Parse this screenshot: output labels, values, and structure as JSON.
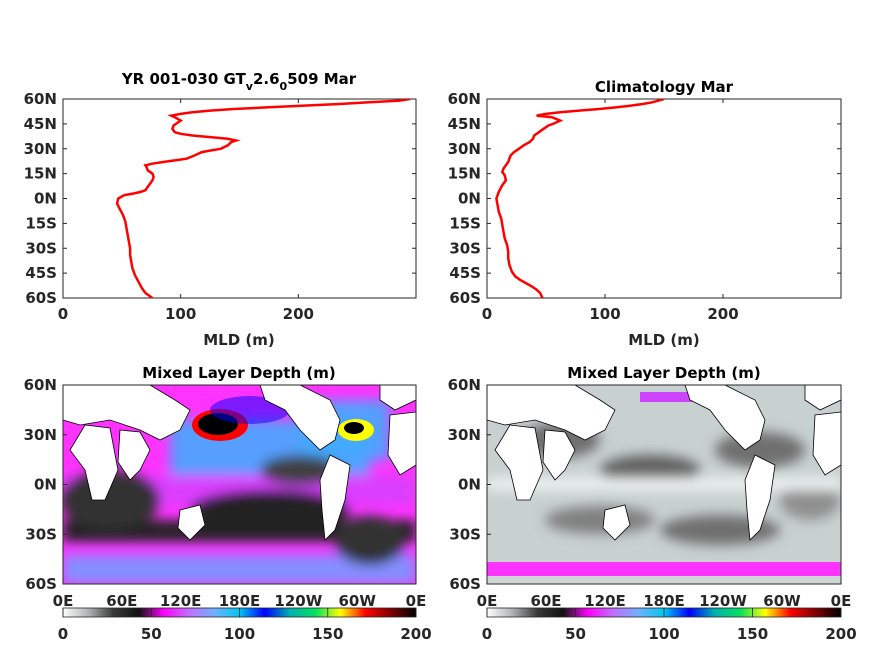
{
  "figure": {
    "colorbar_stops": [
      "#ffffff",
      "#aeb4b4",
      "#3a3a3a",
      "#111111",
      "#ff00ff",
      "#c070ff",
      "#70b0ff",
      "#00c8f0",
      "#0000ff",
      "#00b0b0",
      "#00e060",
      "#ffff00",
      "#ff0000",
      "#800000",
      "#000000"
    ]
  },
  "chart_data": [
    {
      "type": "line",
      "title": "YR 001-030 GT",
      "title_sub1": "v",
      "title_mid": "2.6",
      "title_sub2": "0",
      "title_end": "509 Mar",
      "xlabel": "MLD (m)",
      "xlim": [
        0,
        300
      ],
      "xticks": [
        "0",
        "100",
        "200"
      ],
      "xtick_values": [
        0,
        100,
        200
      ],
      "ylim": [
        -60,
        60
      ],
      "yticks": [
        "60N",
        "45N",
        "30N",
        "15N",
        "0N",
        "15S",
        "30S",
        "45S",
        "60S"
      ],
      "ytick_values": [
        60,
        45,
        30,
        15,
        0,
        -15,
        -30,
        -45,
        -60
      ],
      "series": [
        {
          "color": "#ff0000",
          "points": [
            [
              76,
              -60
            ],
            [
              70,
              -57
            ],
            [
              67,
              -54
            ],
            [
              64,
              -50
            ],
            [
              61,
              -46
            ],
            [
              59,
              -42
            ],
            [
              58,
              -38
            ],
            [
              57,
              -34
            ],
            [
              57,
              -30
            ],
            [
              56,
              -26
            ],
            [
              55,
              -22
            ],
            [
              54,
              -18
            ],
            [
              53,
              -14
            ],
            [
              51,
              -10
            ],
            [
              48,
              -6
            ],
            [
              46,
              -3
            ],
            [
              47,
              0
            ],
            [
              52,
              2
            ],
            [
              60,
              3
            ],
            [
              66,
              4
            ],
            [
              70,
              5
            ],
            [
              72,
              7
            ],
            [
              74,
              9
            ],
            [
              76,
              11
            ],
            [
              77,
              13
            ],
            [
              76,
              15
            ],
            [
              72,
              17
            ],
            [
              71,
              19
            ],
            [
              70,
              20
            ],
            [
              76,
              21
            ],
            [
              85,
              22
            ],
            [
              95,
              23
            ],
            [
              105,
              24
            ],
            [
              112,
              26
            ],
            [
              118,
              28
            ],
            [
              126,
              29
            ],
            [
              134,
              30
            ],
            [
              140,
              32
            ],
            [
              143,
              34
            ],
            [
              147,
              35
            ],
            [
              140,
              36
            ],
            [
              125,
              37
            ],
            [
              110,
              38
            ],
            [
              100,
              39
            ],
            [
              95,
              40
            ],
            [
              93,
              42
            ],
            [
              94,
              44
            ],
            [
              96,
              45
            ],
            [
              100,
              47
            ],
            [
              95,
              49
            ],
            [
              92,
              50
            ],
            [
              100,
              51
            ],
            [
              110,
              52
            ],
            [
              125,
              53
            ],
            [
              145,
              54
            ],
            [
              175,
              55
            ],
            [
              205,
              56
            ],
            [
              235,
              57
            ],
            [
              260,
              58
            ],
            [
              285,
              59
            ],
            [
              295,
              60
            ]
          ]
        }
      ]
    },
    {
      "type": "line",
      "title": "Climatology Mar",
      "xlabel": "MLD (m)",
      "xlim": [
        0,
        300
      ],
      "xticks": [
        "0",
        "100",
        "200"
      ],
      "xtick_values": [
        0,
        100,
        200
      ],
      "ylim": [
        -60,
        60
      ],
      "yticks": [
        "60N",
        "45N",
        "30N",
        "15N",
        "0N",
        "15S",
        "30S",
        "45S",
        "60S"
      ],
      "ytick_values": [
        60,
        45,
        30,
        15,
        0,
        -15,
        -30,
        -45,
        -60
      ],
      "series": [
        {
          "color": "#ff0000",
          "points": [
            [
              47,
              -60
            ],
            [
              45,
              -57
            ],
            [
              42,
              -55
            ],
            [
              38,
              -53
            ],
            [
              33,
              -51
            ],
            [
              28,
              -49
            ],
            [
              24,
              -47
            ],
            [
              21,
              -44
            ],
            [
              19,
              -40
            ],
            [
              18,
              -36
            ],
            [
              18,
              -32
            ],
            [
              17,
              -28
            ],
            [
              15,
              -24
            ],
            [
              14,
              -20
            ],
            [
              13,
              -16
            ],
            [
              12,
              -12
            ],
            [
              10,
              -8
            ],
            [
              9,
              -4
            ],
            [
              8,
              0
            ],
            [
              10,
              4
            ],
            [
              13,
              8
            ],
            [
              16,
              11
            ],
            [
              15,
              14
            ],
            [
              13,
              16
            ],
            [
              14,
              18
            ],
            [
              16,
              20
            ],
            [
              18,
              22
            ],
            [
              19,
              24
            ],
            [
              20,
              26
            ],
            [
              23,
              28
            ],
            [
              27,
              30
            ],
            [
              31,
              32
            ],
            [
              36,
              34
            ],
            [
              39,
              36
            ],
            [
              40,
              38
            ],
            [
              44,
              40
            ],
            [
              48,
              42
            ],
            [
              52,
              44
            ],
            [
              56,
              45
            ],
            [
              62,
              47
            ],
            [
              55,
              49
            ],
            [
              42,
              50
            ],
            [
              50,
              51
            ],
            [
              62,
              52
            ],
            [
              78,
              53
            ],
            [
              95,
              54
            ],
            [
              110,
              55
            ],
            [
              122,
              56
            ],
            [
              132,
              57
            ],
            [
              140,
              58
            ],
            [
              145,
              59
            ],
            [
              150,
              60
            ]
          ]
        }
      ]
    },
    {
      "type": "heatmap",
      "title": "Mixed Layer Depth (m)",
      "yticks": [
        "60N",
        "30N",
        "0N",
        "30S",
        "60S"
      ],
      "ytick_values": [
        60,
        30,
        0,
        -30,
        -60
      ],
      "xticks": [
        "0E",
        "60E",
        "120E",
        "180E",
        "120W",
        "60W",
        "0E"
      ],
      "xtick_values": [
        0,
        60,
        120,
        180,
        240,
        300,
        360
      ],
      "colorbar": {
        "ticks": [
          "0",
          "50",
          "100",
          "150",
          "200"
        ],
        "tick_values": [
          0,
          50,
          100,
          150,
          200
        ],
        "range": [
          0,
          200
        ]
      }
    },
    {
      "type": "heatmap",
      "title": "Mixed Layer Depth (m)",
      "yticks": [
        "60N",
        "30N",
        "0N",
        "30S",
        "60S"
      ],
      "ytick_values": [
        60,
        30,
        0,
        -30,
        -60
      ],
      "xticks": [
        "0E",
        "60E",
        "120E",
        "180E",
        "120W",
        "60W",
        "0E"
      ],
      "xtick_values": [
        0,
        60,
        120,
        180,
        240,
        300,
        360
      ],
      "colorbar": {
        "ticks": [
          "0",
          "50",
          "100",
          "150",
          "200"
        ],
        "tick_values": [
          0,
          50,
          100,
          150,
          200
        ],
        "range": [
          0,
          200
        ]
      }
    }
  ]
}
